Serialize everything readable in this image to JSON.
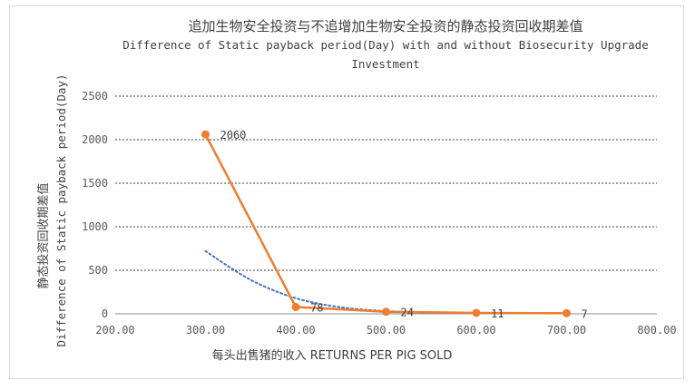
{
  "chart_data": {
    "type": "line",
    "title_lines": [
      "追加生物安全投资与不追增加生物安全投资的静态投资回收期差值",
      "Difference of Static payback period(Day) with and without Biosecurity Upgrade",
      "Investment"
    ],
    "xlabel": "每头出售猪的收入 RETURNS PER PIG SOLD",
    "ylabel_lines": [
      "静态投资回收期差值",
      "Difference of Static payback period(Day)"
    ],
    "xlim": [
      200,
      800
    ],
    "ylim": [
      0,
      2500
    ],
    "x_ticks": [
      "200.00",
      "300.00",
      "400.00",
      "500.00",
      "600.00",
      "700.00",
      "800.00"
    ],
    "y_ticks": [
      "0",
      "500",
      "1000",
      "1500",
      "2000",
      "2500"
    ],
    "grid": "horizontal dashed",
    "series": [
      {
        "color": "#ed7d31",
        "x": [
          300,
          400,
          500,
          600,
          700
        ],
        "values": [
          2060,
          78,
          24,
          11,
          7
        ],
        "data_labels": [
          "2060",
          "78",
          "24",
          "11",
          "7"
        ]
      }
    ],
    "trendline": {
      "color": "#4472c4",
      "style": "dotted",
      "x": [
        300,
        350,
        400,
        450,
        500,
        550,
        600,
        650,
        700
      ],
      "values": [
        720,
        390,
        180,
        75,
        32,
        16,
        10,
        8,
        7
      ]
    }
  }
}
